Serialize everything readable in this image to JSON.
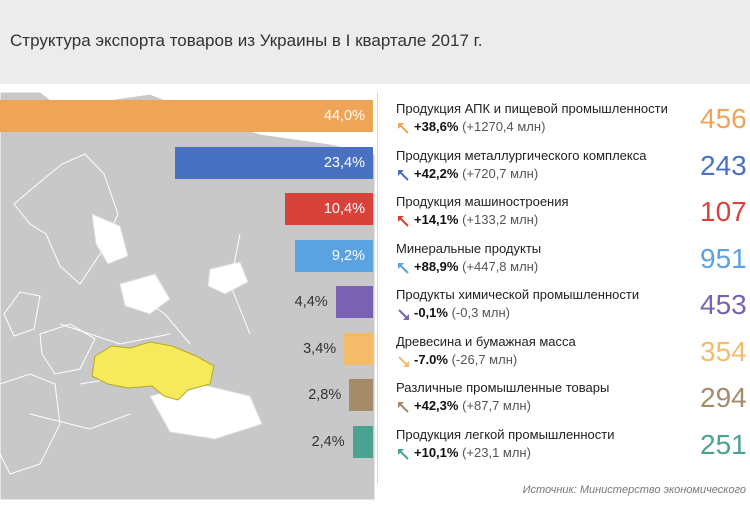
{
  "title": "Структура экспорта товаров из Украины в I квартале 2017 г.",
  "source": "Источник: Министерство экономического",
  "chart_data": {
    "type": "bar",
    "title": "Структура экспорта товаров из Украины в I квартале 2017 г.",
    "categories": [
      "Продукция АПК и пищевой промышленности",
      "Продукция металлургического комплекса",
      "Продукция машиностроения",
      "Минеральные продукты",
      "Продукты химической промышленности",
      "Древесина и бумажная масса",
      "Различные промышленные товары",
      "Продукция легкой промышленности"
    ],
    "values": [
      44.0,
      23.4,
      10.4,
      9.2,
      4.4,
      3.4,
      2.8,
      2.4
    ],
    "value_labels": [
      "44,0%",
      "23,4%",
      "10,4%",
      "9,2%",
      "4,4%",
      "3,4%",
      "2,8%",
      "2,4%"
    ],
    "colors": [
      "#eea558",
      "#4872c1",
      "#d9423b",
      "#5ba2e0",
      "#7a62b3",
      "#f4bb6a",
      "#a68b6b",
      "#4aa392"
    ],
    "change_pct": [
      "+38,6%",
      "+42,2%",
      "+14,1%",
      "+88,9%",
      "-0,1%",
      "-7.0%",
      "+42,3%",
      "+10,1%"
    ],
    "change_abs": [
      "(+1270,4 млн)",
      "(+720,7 млн)",
      "(+133,2 млн)",
      "(+447,8 млн)",
      "(-0,3 млн)",
      "(-26,7 млн)",
      "(+87,7 млн)",
      "(+23,1 млн)"
    ],
    "directions": [
      "up",
      "up",
      "up",
      "up",
      "down",
      "down",
      "up",
      "up"
    ],
    "big_values": [
      "456",
      "243",
      "107",
      "951",
      "453",
      "354",
      "294",
      "251"
    ],
    "xlim": [
      0,
      44
    ]
  }
}
